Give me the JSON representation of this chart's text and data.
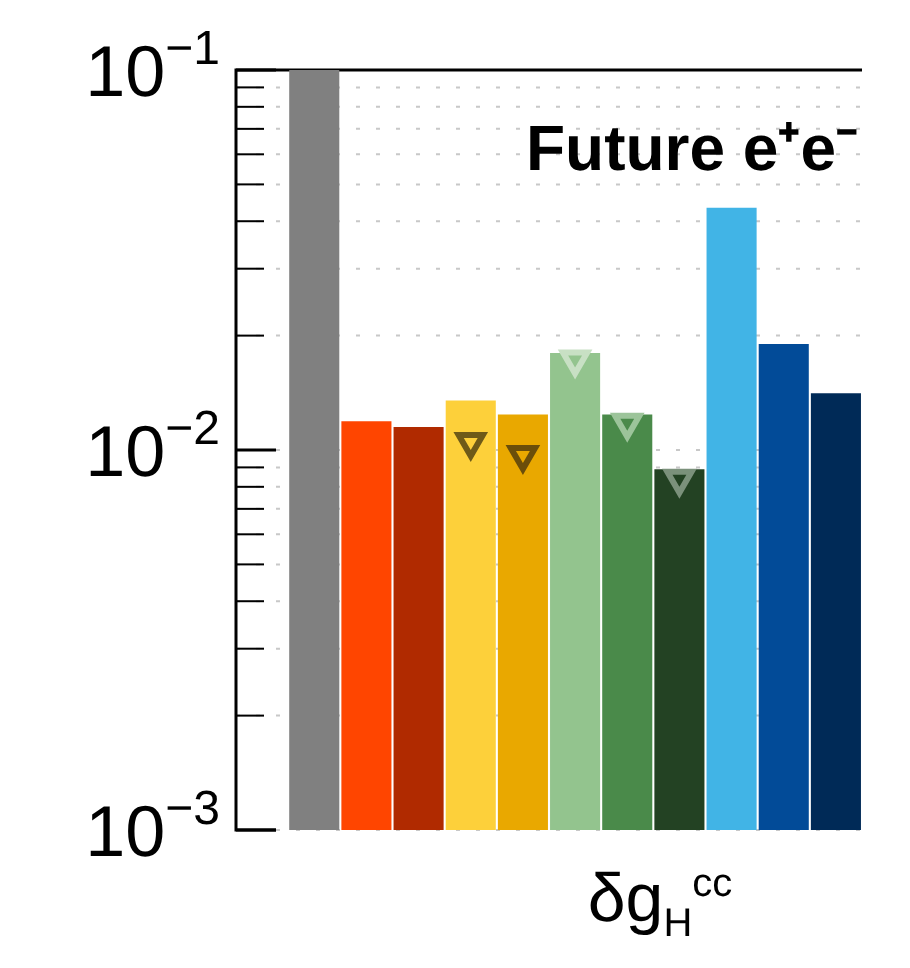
{
  "chart_data": {
    "type": "bar",
    "title": "Future e⁺e⁻",
    "xlabel": "δg$_{H}$$^{cc}$",
    "categories": [
      null,
      null,
      null,
      null,
      null,
      null,
      null,
      null,
      null,
      null,
      null,
      null
    ],
    "series": [
      {
        "colors": [
          "#808080",
          "#808080",
          "#ff4500",
          "#b02a00",
          "#fdd03a",
          "#e9a800",
          "#93c48e",
          "#4a8a4a",
          "#234223",
          "#41b4e6",
          "#024b98",
          "#002a57"
        ],
        "values": [
          null,
          0.1,
          0.0119,
          0.0115,
          0.0135,
          0.0124,
          0.018,
          0.0124,
          0.0089,
          0.0434,
          0.019,
          0.0141
        ]
      },
      {
        "type": "scatter",
        "marker": "triangle",
        "colors": [
          "#6e5a18",
          "#6e5a18",
          "#6e5a18",
          "#6e5a18",
          "#6e5a18",
          "#6b4e0a",
          "#c8e0c4",
          "#9cc49a",
          "#7b917b",
          "#7b917b",
          "#7b917b",
          "#7b917b"
        ],
        "values": [
          null,
          null,
          null,
          null,
          0.0105,
          0.0097,
          0.0173,
          0.0118,
          0.0084,
          null,
          null,
          null
        ]
      }
    ],
    "log": true,
    "ylim": [
      0.001,
      0.1
    ],
    "yticks": [
      {
        "value": 0.001,
        "label": "10$^{−3}$"
      },
      {
        "value": 0.002,
        "label": null
      },
      {
        "value": 0.003,
        "label": null
      },
      {
        "value": 0.004,
        "label": null
      },
      {
        "value": 0.005,
        "label": null
      },
      {
        "value": 0.006,
        "label": null
      },
      {
        "value": 0.007,
        "label": null
      },
      {
        "value": 0.008,
        "label": null
      },
      {
        "value": 0.009,
        "label": null
      },
      {
        "value": 0.01,
        "label": "10$^{−2}$"
      },
      {
        "value": 0.02,
        "label": null
      },
      {
        "value": 0.03,
        "label": null
      },
      {
        "value": 0.04,
        "label": null
      },
      {
        "value": 0.05,
        "label": null
      },
      {
        "value": 0.06,
        "label": null
      },
      {
        "value": 0.07,
        "label": null
      },
      {
        "value": 0.08,
        "label": null
      },
      {
        "value": 0.09,
        "label": null
      },
      {
        "value": 0.1,
        "label": "10$^{−1}$"
      }
    ],
    "grid": "y",
    "legend": false
  }
}
